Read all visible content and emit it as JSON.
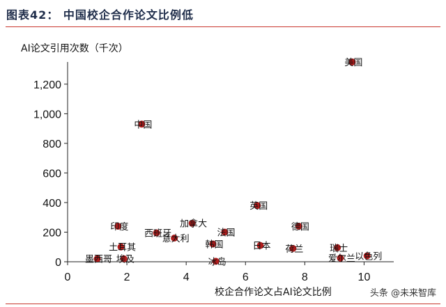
{
  "header": {
    "title": "图表42：   中国校企合作论文比例低"
  },
  "watermark": "头条 @未来智库",
  "chart_data": {
    "type": "scatter",
    "ylabel": "AI论文引用次数（千次）",
    "xlabel": "校企合作论文占AI论文比例",
    "xlim": [
      0,
      11
    ],
    "ylim": [
      0,
      1350
    ],
    "xticks": [
      0,
      2,
      4,
      6,
      8,
      10
    ],
    "yticks": [
      0,
      200,
      400,
      600,
      800,
      1000,
      1200
    ],
    "ytick_labels": [
      "0",
      "200",
      "400",
      "600",
      "800",
      "1,000",
      "1,200"
    ],
    "marker_color": "#b01c1c",
    "points": [
      {
        "name": "美国",
        "x": 9.6,
        "y": 1350
      },
      {
        "name": "中国",
        "x": 2.5,
        "y": 930
      },
      {
        "name": "英国",
        "x": 6.4,
        "y": 380
      },
      {
        "name": "德国",
        "x": 7.8,
        "y": 240
      },
      {
        "name": "印度",
        "x": 1.7,
        "y": 240
      },
      {
        "name": "加拿大",
        "x": 4.2,
        "y": 260
      },
      {
        "name": "法国",
        "x": 5.3,
        "y": 200
      },
      {
        "name": "西班牙",
        "x": 3.0,
        "y": 195
      },
      {
        "name": "意大利",
        "x": 3.6,
        "y": 160
      },
      {
        "name": "韩国",
        "x": 4.9,
        "y": 120
      },
      {
        "name": "日本",
        "x": 6.5,
        "y": 110
      },
      {
        "name": "荷兰",
        "x": 7.6,
        "y": 90
      },
      {
        "name": "瑞士",
        "x": 9.1,
        "y": 95
      },
      {
        "name": "土耳其",
        "x": 1.8,
        "y": 100
      },
      {
        "name": "以色列",
        "x": 10.1,
        "y": 40
      },
      {
        "name": "爱尔兰",
        "x": 9.2,
        "y": 25
      },
      {
        "name": "墨西哥",
        "x": 1.0,
        "y": 20
      },
      {
        "name": "埃及",
        "x": 1.9,
        "y": 20
      },
      {
        "name": "冰岛",
        "x": 5.0,
        "y": 3
      }
    ]
  }
}
